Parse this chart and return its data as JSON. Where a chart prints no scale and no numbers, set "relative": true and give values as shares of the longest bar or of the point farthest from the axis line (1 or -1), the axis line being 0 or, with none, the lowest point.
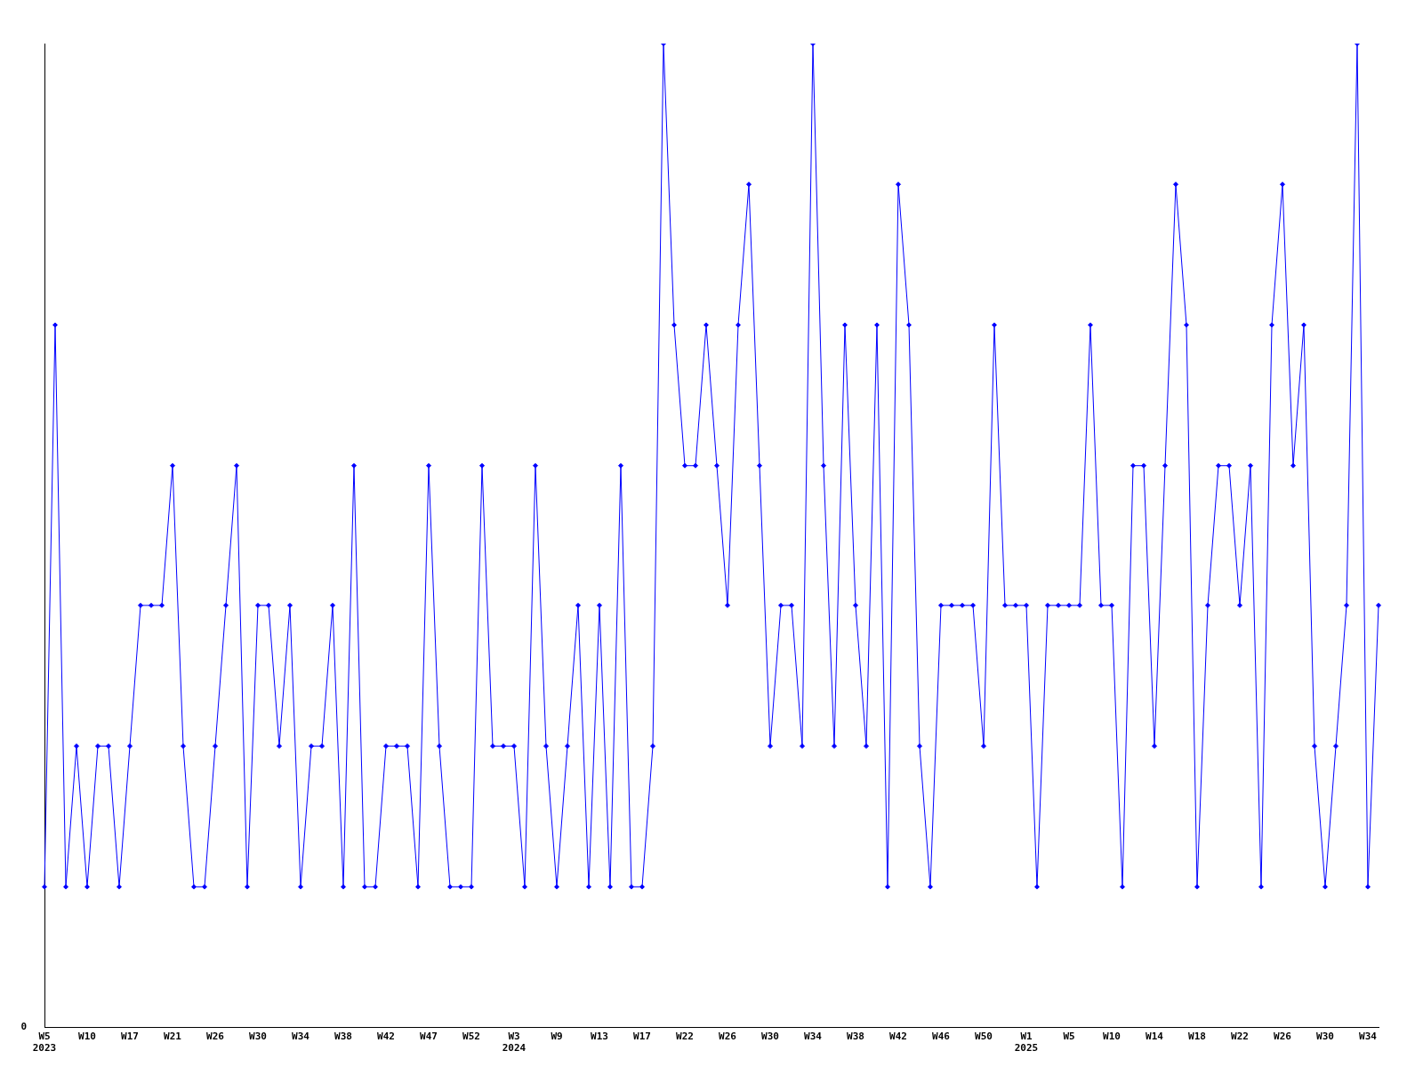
{
  "chart_data": {
    "type": "line",
    "relative": true,
    "grid": false,
    "legend": false,
    "marker": "diamond",
    "line_style": "solid",
    "categories": [
      "W5\n2023",
      null,
      null,
      null,
      "W10",
      null,
      null,
      null,
      "W17",
      null,
      null,
      null,
      "W21",
      null,
      null,
      null,
      "W26",
      null,
      null,
      null,
      "W30",
      null,
      null,
      null,
      "W34",
      null,
      null,
      null,
      "W38",
      null,
      null,
      null,
      "W42",
      null,
      null,
      null,
      "W47",
      null,
      null,
      null,
      "W52",
      null,
      null,
      null,
      "W3\n2024",
      null,
      null,
      null,
      "W9",
      null,
      null,
      null,
      "W13",
      null,
      null,
      null,
      "W17",
      null,
      null,
      null,
      "W22",
      null,
      null,
      null,
      "W26",
      null,
      null,
      null,
      "W30",
      null,
      null,
      null,
      "W34",
      null,
      null,
      null,
      "W38",
      null,
      null,
      null,
      "W42",
      null,
      null,
      null,
      "W46",
      null,
      null,
      null,
      "W50",
      null,
      null,
      null,
      "W1\n2025",
      null,
      null,
      null,
      "W5",
      null,
      null,
      null,
      "W10",
      null,
      null,
      null,
      "W14",
      null,
      null,
      null,
      "W18",
      null,
      null,
      null,
      "W22",
      null,
      null,
      null,
      "W26",
      null,
      null,
      null,
      "W30",
      null,
      null,
      null,
      "W34",
      null
    ],
    "series": [
      {
        "color": "#0000ff",
        "values": [
          0.143,
          0.714,
          0.143,
          0.286,
          0.143,
          0.286,
          0.286,
          0.143,
          0.286,
          0.429,
          0.429,
          0.429,
          0.571,
          0.286,
          0.143,
          0.143,
          0.286,
          0.429,
          0.571,
          0.143,
          0.429,
          0.429,
          0.286,
          0.429,
          0.143,
          0.286,
          0.286,
          0.429,
          0.143,
          0.571,
          0.143,
          0.143,
          0.286,
          0.286,
          0.286,
          0.143,
          0.571,
          0.286,
          0.143,
          0.143,
          0.143,
          0.571,
          0.286,
          0.286,
          0.286,
          0.143,
          0.571,
          0.286,
          0.143,
          0.286,
          0.429,
          0.143,
          0.429,
          0.143,
          0.571,
          0.143,
          0.143,
          0.286,
          1,
          0.714,
          0.571,
          0.571,
          0.714,
          0.571,
          0.429,
          0.714,
          0.857,
          0.571,
          0.286,
          0.429,
          0.429,
          0.286,
          1,
          0.571,
          0.286,
          0.714,
          0.429,
          0.286,
          0.714,
          0.143,
          0.857,
          0.714,
          0.286,
          0.143,
          0.429,
          0.429,
          0.429,
          0.429,
          0.286,
          0.714,
          0.429,
          0.429,
          0.429,
          0.143,
          0.429,
          0.429,
          0.429,
          0.429,
          0.714,
          0.429,
          0.429,
          0.143,
          0.571,
          0.571,
          0.286,
          0.571,
          0.857,
          0.714,
          0.143,
          0.429,
          0.571,
          0.571,
          0.429,
          0.571,
          0.143,
          0.714,
          0.857,
          0.571,
          0.714,
          0.286,
          0.143,
          0.286,
          0.429,
          1,
          0.143,
          0.429
        ]
      }
    ],
    "annotations": [
      "0"
    ]
  }
}
